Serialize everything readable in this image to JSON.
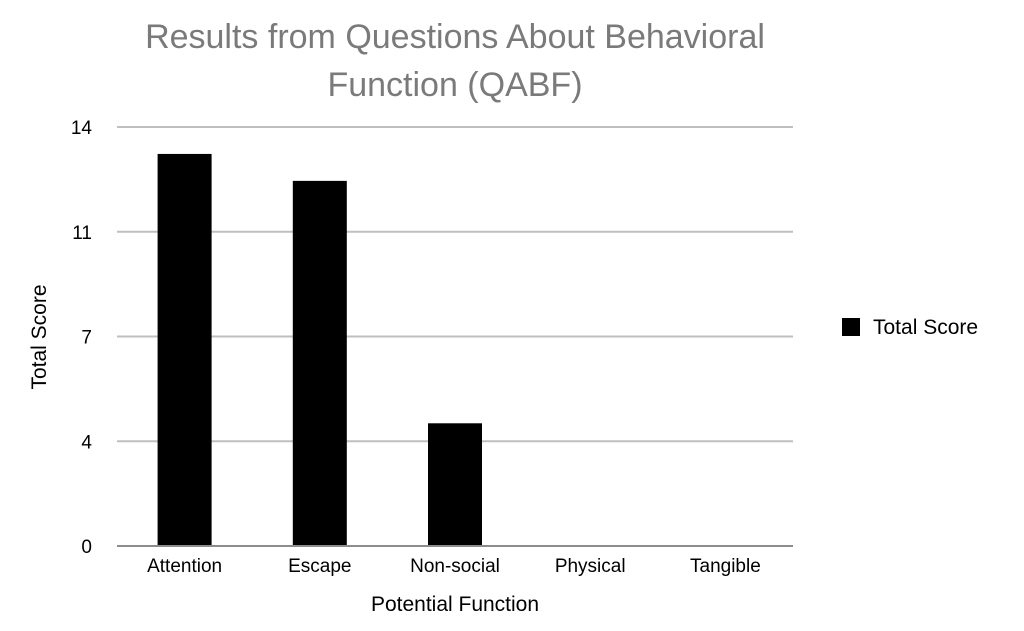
{
  "chart_data": {
    "type": "bar",
    "title": "Results from Questions About Behavioral Function (QABF)",
    "title_lines": [
      "Results from Questions About Behavioral",
      "Function (QABF)"
    ],
    "categories": [
      "Attention",
      "Escape",
      "Non-social",
      "Physical",
      "Tangible"
    ],
    "series": [
      {
        "name": "Total Score",
        "values": [
          13.1,
          12.2,
          4.1,
          0,
          0
        ],
        "color": "#000000"
      }
    ],
    "xlabel": "Potential Function",
    "ylabel": "Total Score",
    "ylim": [
      0,
      14
    ],
    "yticks": [
      {
        "value": 0,
        "label": "0"
      },
      {
        "value": 3.5,
        "label": "4"
      },
      {
        "value": 7,
        "label": "7"
      },
      {
        "value": 10.5,
        "label": "11"
      },
      {
        "value": 14,
        "label": "14"
      }
    ],
    "grid": true,
    "legend_position": "right",
    "colors": {
      "title": "#7a7a7a",
      "gridline": "#bfbfbf",
      "bar": "#000000"
    }
  }
}
